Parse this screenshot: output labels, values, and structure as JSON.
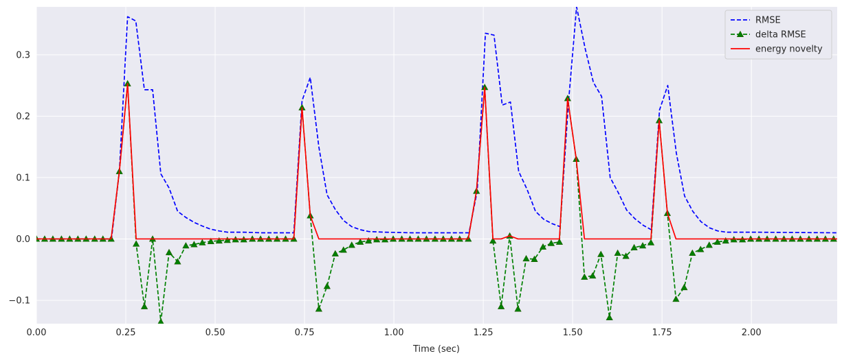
{
  "chart_data": {
    "type": "line",
    "title": "",
    "xlabel": "Time (sec)",
    "ylabel": "",
    "xlim": [
      0,
      2.24
    ],
    "ylim": [
      -0.138,
      0.378
    ],
    "grid": true,
    "background": "#eaeaf2",
    "legend_position": "top-right",
    "xticks": [
      0.0,
      0.25,
      0.5,
      0.75,
      1.0,
      1.25,
      1.5,
      1.75,
      2.0
    ],
    "xtick_labels": [
      "0.00",
      "0.25",
      "0.50",
      "0.75",
      "1.00",
      "1.25",
      "1.50",
      "1.75",
      "2.00"
    ],
    "yticks": [
      -0.1,
      0.0,
      0.1,
      0.2,
      0.3
    ],
    "ytick_labels": [
      "−0.1",
      "0.0",
      "0.1",
      "0.2",
      "0.3"
    ],
    "series": [
      {
        "name": "RMSE",
        "color": "#0000ff",
        "style": "dashed",
        "marker": "none",
        "points": [
          [
            0.0,
            0.0
          ],
          [
            0.21,
            0.0
          ],
          [
            0.232,
            0.11
          ],
          [
            0.255,
            0.362
          ],
          [
            0.278,
            0.355
          ],
          [
            0.302,
            0.243
          ],
          [
            0.325,
            0.243
          ],
          [
            0.348,
            0.106
          ],
          [
            0.371,
            0.083
          ],
          [
            0.395,
            0.045
          ],
          [
            0.418,
            0.035
          ],
          [
            0.441,
            0.027
          ],
          [
            0.464,
            0.021
          ],
          [
            0.487,
            0.016
          ],
          [
            0.511,
            0.013
          ],
          [
            0.534,
            0.011
          ],
          [
            0.58,
            0.011
          ],
          [
            0.627,
            0.01
          ],
          [
            0.72,
            0.01
          ],
          [
            0.743,
            0.225
          ],
          [
            0.766,
            0.263
          ],
          [
            0.79,
            0.15
          ],
          [
            0.813,
            0.072
          ],
          [
            0.836,
            0.048
          ],
          [
            0.859,
            0.03
          ],
          [
            0.882,
            0.02
          ],
          [
            0.906,
            0.015
          ],
          [
            0.93,
            0.012
          ],
          [
            0.975,
            0.011
          ],
          [
            1.05,
            0.01
          ],
          [
            1.21,
            0.01
          ],
          [
            1.233,
            0.078
          ],
          [
            1.256,
            0.335
          ],
          [
            1.28,
            0.332
          ],
          [
            1.303,
            0.218
          ],
          [
            1.326,
            0.223
          ],
          [
            1.349,
            0.11
          ],
          [
            1.373,
            0.08
          ],
          [
            1.396,
            0.045
          ],
          [
            1.419,
            0.032
          ],
          [
            1.442,
            0.025
          ],
          [
            1.465,
            0.02
          ],
          [
            1.488,
            0.22
          ],
          [
            1.511,
            0.378
          ],
          [
            1.535,
            0.31
          ],
          [
            1.558,
            0.255
          ],
          [
            1.581,
            0.232
          ],
          [
            1.605,
            0.1
          ],
          [
            1.628,
            0.075
          ],
          [
            1.651,
            0.047
          ],
          [
            1.674,
            0.033
          ],
          [
            1.698,
            0.022
          ],
          [
            1.72,
            0.015
          ],
          [
            1.743,
            0.21
          ],
          [
            1.766,
            0.25
          ],
          [
            1.79,
            0.14
          ],
          [
            1.813,
            0.07
          ],
          [
            1.836,
            0.045
          ],
          [
            1.859,
            0.028
          ],
          [
            1.883,
            0.018
          ],
          [
            1.906,
            0.013
          ],
          [
            1.93,
            0.011
          ],
          [
            2.0,
            0.011
          ],
          [
            2.24,
            0.01
          ]
        ]
      },
      {
        "name": "delta RMSE",
        "color": "#008000",
        "style": "dashed",
        "marker": "triangle",
        "points": [
          [
            0.0,
            0.0
          ],
          [
            0.023,
            0.0
          ],
          [
            0.046,
            0.0
          ],
          [
            0.07,
            0.0
          ],
          [
            0.093,
            0.0
          ],
          [
            0.116,
            0.0
          ],
          [
            0.139,
            0.0
          ],
          [
            0.163,
            0.0
          ],
          [
            0.186,
            0.0
          ],
          [
            0.209,
            0.0
          ],
          [
            0.232,
            0.11
          ],
          [
            0.255,
            0.253
          ],
          [
            0.279,
            -0.008
          ],
          [
            0.302,
            -0.11
          ],
          [
            0.325,
            0.0
          ],
          [
            0.348,
            -0.135
          ],
          [
            0.371,
            -0.022
          ],
          [
            0.395,
            -0.037
          ],
          [
            0.418,
            -0.011
          ],
          [
            0.441,
            -0.009
          ],
          [
            0.464,
            -0.006
          ],
          [
            0.488,
            -0.004
          ],
          [
            0.511,
            -0.003
          ],
          [
            0.534,
            -0.002
          ],
          [
            0.557,
            -0.001
          ],
          [
            0.58,
            -0.001
          ],
          [
            0.604,
            0.0
          ],
          [
            0.627,
            0.0
          ],
          [
            0.65,
            0.0
          ],
          [
            0.673,
            0.0
          ],
          [
            0.697,
            0.0
          ],
          [
            0.72,
            0.0
          ],
          [
            0.743,
            0.214
          ],
          [
            0.766,
            0.038
          ],
          [
            0.79,
            -0.114
          ],
          [
            0.813,
            -0.077
          ],
          [
            0.836,
            -0.024
          ],
          [
            0.859,
            -0.018
          ],
          [
            0.882,
            -0.01
          ],
          [
            0.906,
            -0.005
          ],
          [
            0.929,
            -0.003
          ],
          [
            0.952,
            -0.001
          ],
          [
            0.975,
            -0.001
          ],
          [
            0.998,
            0.0
          ],
          [
            1.022,
            0.0
          ],
          [
            1.045,
            0.0
          ],
          [
            1.068,
            0.0
          ],
          [
            1.091,
            0.0
          ],
          [
            1.115,
            0.0
          ],
          [
            1.138,
            0.0
          ],
          [
            1.161,
            0.0
          ],
          [
            1.184,
            0.0
          ],
          [
            1.208,
            0.0
          ],
          [
            1.231,
            0.078
          ],
          [
            1.254,
            0.247
          ],
          [
            1.277,
            -0.003
          ],
          [
            1.3,
            -0.11
          ],
          [
            1.324,
            0.005
          ],
          [
            1.347,
            -0.114
          ],
          [
            1.37,
            -0.032
          ],
          [
            1.393,
            -0.033
          ],
          [
            1.417,
            -0.013
          ],
          [
            1.44,
            -0.007
          ],
          [
            1.463,
            -0.005
          ],
          [
            1.486,
            0.229
          ],
          [
            1.51,
            0.13
          ],
          [
            1.533,
            -0.062
          ],
          [
            1.556,
            -0.06
          ],
          [
            1.579,
            -0.025
          ],
          [
            1.603,
            -0.128
          ],
          [
            1.626,
            -0.023
          ],
          [
            1.649,
            -0.028
          ],
          [
            1.672,
            -0.014
          ],
          [
            1.696,
            -0.011
          ],
          [
            1.719,
            -0.006
          ],
          [
            1.742,
            0.193
          ],
          [
            1.765,
            0.042
          ],
          [
            1.789,
            -0.098
          ],
          [
            1.812,
            -0.079
          ],
          [
            1.835,
            -0.023
          ],
          [
            1.858,
            -0.017
          ],
          [
            1.882,
            -0.01
          ],
          [
            1.905,
            -0.005
          ],
          [
            1.928,
            -0.003
          ],
          [
            1.951,
            -0.001
          ],
          [
            1.975,
            -0.001
          ],
          [
            1.998,
            0.0
          ],
          [
            2.021,
            0.0
          ],
          [
            2.044,
            0.0
          ],
          [
            2.068,
            0.0
          ],
          [
            2.091,
            0.0
          ],
          [
            2.114,
            0.0
          ],
          [
            2.137,
            0.0
          ],
          [
            2.161,
            0.0
          ],
          [
            2.184,
            0.0
          ],
          [
            2.207,
            0.0
          ],
          [
            2.23,
            0.0
          ]
        ]
      },
      {
        "name": "energy novelty",
        "color": "#ff0000",
        "style": "solid",
        "marker": "none",
        "points": [
          [
            0.0,
            0.0
          ],
          [
            0.209,
            0.0
          ],
          [
            0.232,
            0.11
          ],
          [
            0.255,
            0.253
          ],
          [
            0.279,
            0.0
          ],
          [
            0.72,
            0.0
          ],
          [
            0.743,
            0.214
          ],
          [
            0.766,
            0.038
          ],
          [
            0.79,
            0.0
          ],
          [
            1.208,
            0.0
          ],
          [
            1.231,
            0.078
          ],
          [
            1.254,
            0.247
          ],
          [
            1.277,
            0.0
          ],
          [
            1.3,
            0.0
          ],
          [
            1.324,
            0.005
          ],
          [
            1.347,
            0.0
          ],
          [
            1.463,
            0.0
          ],
          [
            1.486,
            0.229
          ],
          [
            1.51,
            0.13
          ],
          [
            1.533,
            0.0
          ],
          [
            1.719,
            0.0
          ],
          [
            1.742,
            0.193
          ],
          [
            1.765,
            0.042
          ],
          [
            1.789,
            0.0
          ],
          [
            2.24,
            0.0
          ]
        ]
      }
    ]
  }
}
